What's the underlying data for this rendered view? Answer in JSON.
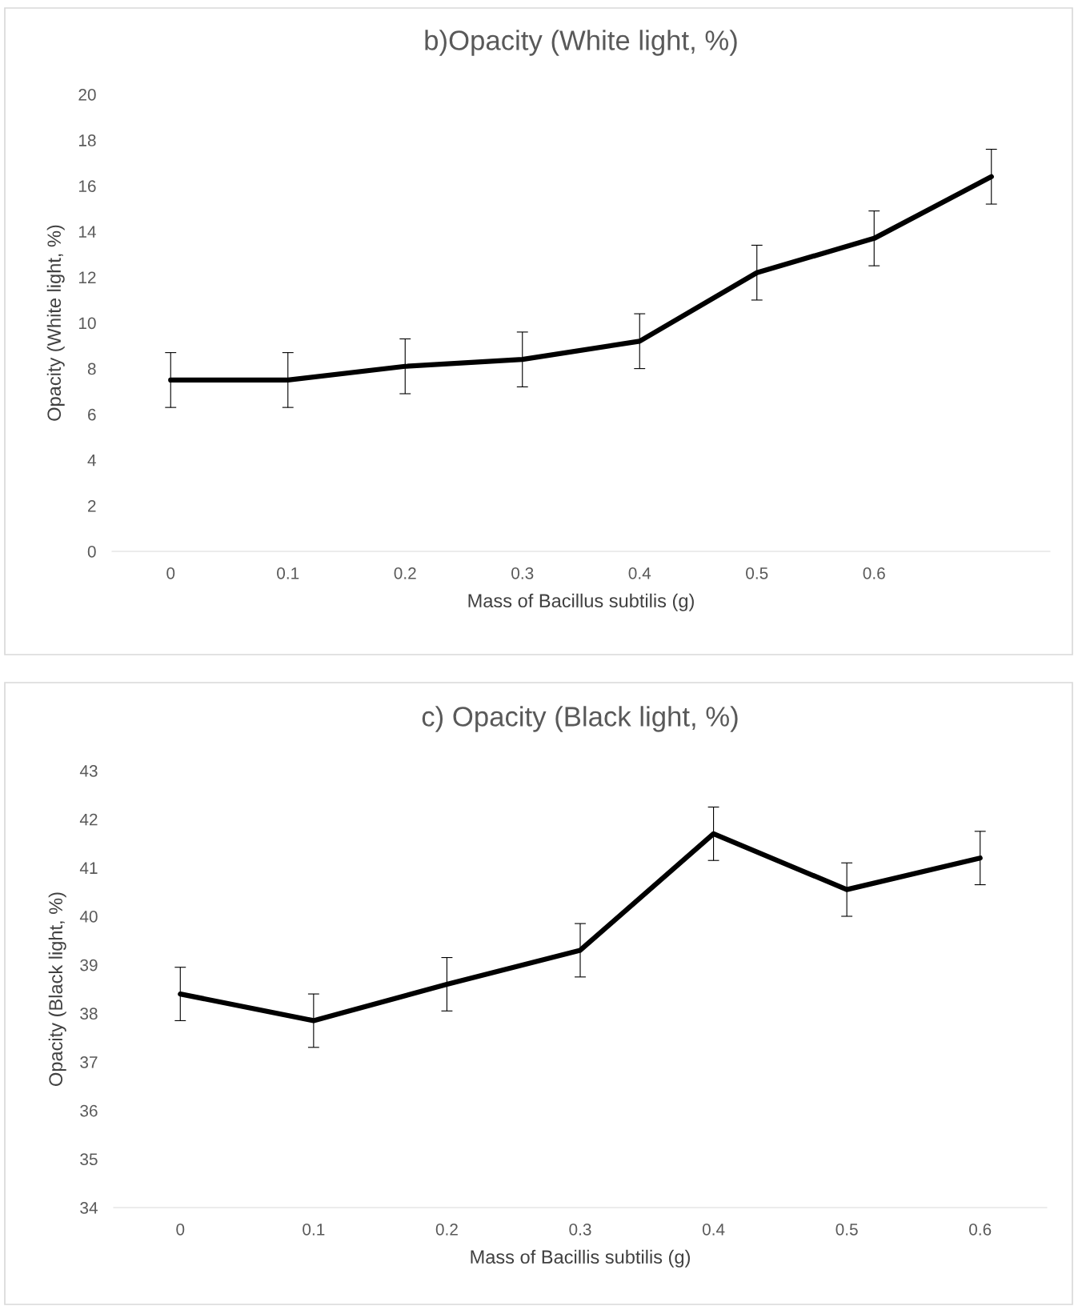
{
  "chart_data": [
    {
      "type": "line",
      "title": "b)Opacity (White light, %)",
      "xlabel": "Mass of Bacillus subtilis (g)",
      "ylabel": "Opacity (White light, %)",
      "categories": [
        "0",
        "0.1",
        "0.2",
        "0.3",
        "0.4",
        "0.5",
        "0.6",
        null
      ],
      "series": [
        {
          "color": "#000000",
          "values": [
            7.5,
            7.5,
            8.1,
            8.4,
            9.2,
            12.2,
            13.7,
            16.4
          ],
          "errors": [
            1.2,
            1.2,
            1.2,
            1.2,
            1.2,
            1.2,
            1.2,
            1.2
          ]
        }
      ],
      "ylim": [
        0,
        20
      ],
      "yticks": [
        0,
        2,
        4,
        6,
        8,
        10,
        12,
        14,
        16,
        18,
        20
      ],
      "grid": false,
      "legend": false,
      "marker": "none",
      "line_style": "solid"
    },
    {
      "type": "line",
      "title": "c) Opacity (Black light, %)",
      "xlabel": "Mass of Bacillis subtilis (g)",
      "ylabel": "Opacity (Black light, %)",
      "categories": [
        "0",
        "0.1",
        "0.2",
        "0.3",
        "0.4",
        "0.5",
        "0.6"
      ],
      "series": [
        {
          "color": "#000000",
          "values": [
            38.4,
            37.85,
            38.6,
            39.3,
            41.7,
            40.55,
            41.2
          ],
          "errors": [
            0.55,
            0.55,
            0.55,
            0.55,
            0.55,
            0.55,
            0.55
          ]
        }
      ],
      "ylim": [
        34,
        43
      ],
      "yticks": [
        34,
        35,
        36,
        37,
        38,
        39,
        40,
        41,
        42,
        43
      ],
      "grid": false,
      "legend": false,
      "marker": "none",
      "line_style": "solid"
    }
  ]
}
